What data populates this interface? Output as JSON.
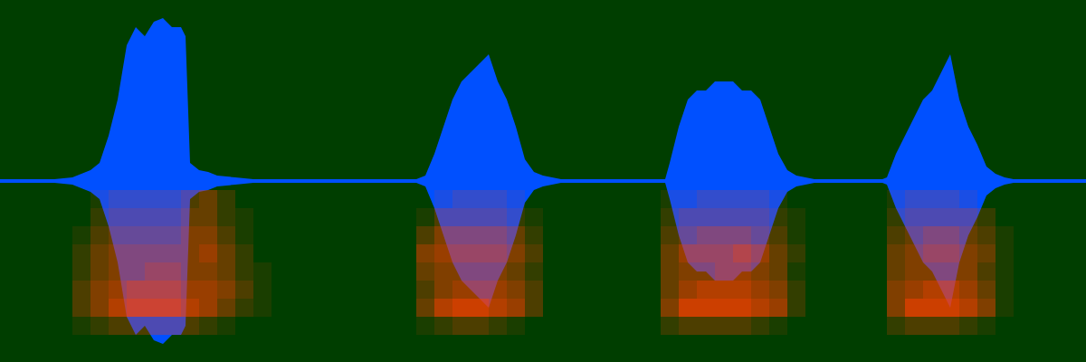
{
  "chart_data": {
    "type": "waveform",
    "tick_labels": false,
    "xlim": [
      0,
      1200
    ],
    "ylim": [
      -1,
      1
    ],
    "color": "#0050ff",
    "x": [
      0,
      60,
      80,
      100,
      110,
      120,
      130,
      140,
      150,
      160,
      170,
      180,
      190,
      200,
      205,
      210,
      220,
      230,
      240,
      260,
      280,
      300,
      460,
      470,
      480,
      490,
      500,
      510,
      520,
      530,
      540,
      550,
      560,
      570,
      580,
      590,
      600,
      620,
      735,
      740,
      750,
      760,
      770,
      780,
      790,
      800,
      810,
      820,
      830,
      840,
      850,
      860,
      870,
      880,
      900,
      975,
      980,
      990,
      1000,
      1010,
      1020,
      1030,
      1040,
      1050,
      1060,
      1070,
      1080,
      1090,
      1100,
      1110,
      1120,
      1200
    ],
    "values": [
      0.01,
      0.01,
      0.02,
      0.06,
      0.1,
      0.25,
      0.45,
      0.75,
      0.85,
      0.8,
      0.88,
      0.9,
      0.85,
      0.85,
      0.8,
      0.1,
      0.06,
      0.05,
      0.03,
      0.02,
      0.01,
      0.01,
      0.01,
      0.03,
      0.15,
      0.3,
      0.45,
      0.55,
      0.6,
      0.65,
      0.7,
      0.55,
      0.45,
      0.3,
      0.12,
      0.05,
      0.03,
      0.01,
      0.01,
      0.1,
      0.3,
      0.45,
      0.5,
      0.5,
      0.55,
      0.55,
      0.55,
      0.5,
      0.5,
      0.45,
      0.3,
      0.15,
      0.06,
      0.03,
      0.01,
      0.01,
      0.02,
      0.15,
      0.25,
      0.35,
      0.45,
      0.5,
      0.6,
      0.7,
      0.45,
      0.3,
      0.2,
      0.08,
      0.04,
      0.02,
      0.01,
      0.01
    ],
    "spectrogram": {
      "color": "#ff4000",
      "x": [
        90,
        110,
        130,
        150,
        170,
        190,
        210,
        230,
        250,
        270,
        290,
        470,
        490,
        510,
        530,
        550,
        570,
        590,
        610,
        740,
        760,
        780,
        800,
        820,
        840,
        860,
        880,
        900,
        990,
        1010,
        1030,
        1050,
        1070,
        1090,
        1110
      ],
      "y": [
        -0.1,
        -0.2,
        -0.3,
        -0.4,
        -0.5,
        -0.6,
        -0.7,
        -0.8
      ],
      "values": [
        [
          0,
          0.1,
          0.2,
          0.2,
          0.2,
          0.2,
          0.3,
          0.4,
          0.2,
          0,
          0,
          0,
          0.1,
          0.2,
          0.2,
          0.2,
          0.1,
          0,
          0,
          0.1,
          0.1,
          0.2,
          0.2,
          0.2,
          0.2,
          0.1,
          0,
          0,
          0.1,
          0.2,
          0.2,
          0.2,
          0.1,
          0,
          0
        ],
        [
          0,
          0.2,
          0.3,
          0.3,
          0.3,
          0.3,
          0.4,
          0.4,
          0.2,
          0.1,
          0,
          0.1,
          0.3,
          0.3,
          0.3,
          0.3,
          0.2,
          0.1,
          0,
          0.2,
          0.3,
          0.3,
          0.3,
          0.3,
          0.3,
          0.2,
          0.1,
          0,
          0.2,
          0.3,
          0.3,
          0.3,
          0.3,
          0.2,
          0
        ],
        [
          0.1,
          0.3,
          0.4,
          0.4,
          0.4,
          0.4,
          0.5,
          0.5,
          0.3,
          0.1,
          0,
          0.3,
          0.5,
          0.5,
          0.5,
          0.5,
          0.4,
          0.2,
          0,
          0.3,
          0.4,
          0.5,
          0.5,
          0.5,
          0.4,
          0.3,
          0.1,
          0,
          0.3,
          0.4,
          0.5,
          0.5,
          0.4,
          0.3,
          0.1
        ],
        [
          0.2,
          0.4,
          0.5,
          0.5,
          0.5,
          0.5,
          0.5,
          0.6,
          0.4,
          0.2,
          0,
          0.5,
          0.6,
          0.6,
          0.6,
          0.6,
          0.5,
          0.3,
          0,
          0.4,
          0.6,
          0.6,
          0.6,
          0.7,
          0.6,
          0.4,
          0.2,
          0,
          0.4,
          0.5,
          0.6,
          0.6,
          0.5,
          0.4,
          0.1
        ],
        [
          0.2,
          0.4,
          0.5,
          0.5,
          0.6,
          0.6,
          0.5,
          0.5,
          0.4,
          0.2,
          0.1,
          0.4,
          0.5,
          0.5,
          0.5,
          0.5,
          0.4,
          0.2,
          0,
          0.4,
          0.5,
          0.5,
          0.6,
          0.6,
          0.5,
          0.4,
          0.1,
          0,
          0.4,
          0.5,
          0.5,
          0.5,
          0.5,
          0.3,
          0.1
        ],
        [
          0.3,
          0.5,
          0.6,
          0.7,
          0.7,
          0.7,
          0.6,
          0.6,
          0.5,
          0.3,
          0.1,
          0.3,
          0.5,
          0.6,
          0.6,
          0.6,
          0.5,
          0.3,
          0,
          0.4,
          0.6,
          0.7,
          0.7,
          0.7,
          0.6,
          0.5,
          0.2,
          0,
          0.5,
          0.6,
          0.7,
          0.7,
          0.6,
          0.4,
          0.1
        ],
        [
          0.3,
          0.5,
          0.7,
          0.8,
          0.8,
          0.8,
          0.7,
          0.6,
          0.4,
          0.2,
          0.1,
          0.4,
          0.7,
          0.8,
          0.8,
          0.7,
          0.6,
          0.3,
          0,
          0.5,
          0.8,
          0.8,
          0.8,
          0.8,
          0.7,
          0.6,
          0.2,
          0,
          0.5,
          0.8,
          0.8,
          0.8,
          0.7,
          0.5,
          0.1
        ],
        [
          0.1,
          0.2,
          0.3,
          0.3,
          0.3,
          0.3,
          0.3,
          0.2,
          0.1,
          0,
          0,
          0.1,
          0.2,
          0.3,
          0.3,
          0.2,
          0.1,
          0,
          0,
          0.2,
          0.3,
          0.3,
          0.3,
          0.3,
          0.2,
          0.1,
          0,
          0,
          0.2,
          0.3,
          0.3,
          0.3,
          0.2,
          0.1,
          0
        ]
      ]
    }
  }
}
